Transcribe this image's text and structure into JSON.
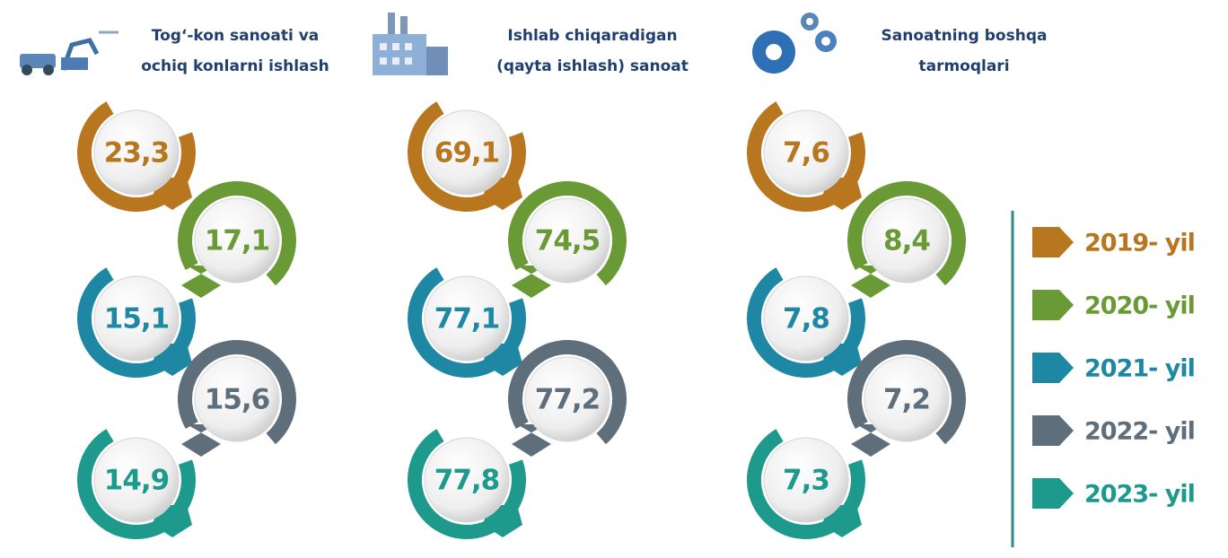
{
  "sectors": [
    {
      "title": [
        "Tog‘-kon sanoati va",
        "ochiq konlarni ishlash"
      ],
      "values": [
        "23,3",
        "17,1",
        "15,1",
        "15,6",
        "14,9"
      ]
    },
    {
      "title": [
        "Ishlab chiqaradigan",
        "(qayta ishlash) sanoat"
      ],
      "values": [
        "69,1",
        "74,5",
        "77,1",
        "77,2",
        "77,8"
      ]
    },
    {
      "title": [
        "Sanoatning boshqa",
        "tarmoqlari"
      ],
      "values": [
        "7,6",
        "8,4",
        "7,8",
        "7,2",
        "7,3"
      ]
    }
  ],
  "legend": [
    {
      "label": "2019- yil",
      "color": "#b8761f"
    },
    {
      "label": "2020- yil",
      "color": "#6a9a36"
    },
    {
      "label": "2021- yil",
      "color": "#1e88a4"
    },
    {
      "label": "2022- yil",
      "color": "#5f6e7b"
    },
    {
      "label": "2023- yil",
      "color": "#1d9a8c"
    }
  ]
}
